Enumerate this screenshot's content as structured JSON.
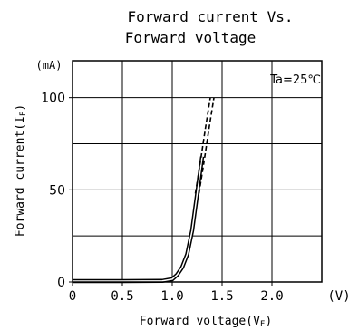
{
  "chart_data": {
    "type": "line",
    "title": [
      "Forward current Vs.",
      "Forward voltage"
    ],
    "xlabel": "Forward voltage(VF)",
    "ylabel": "Forward current(IF)",
    "x_unit": "(V)",
    "y_unit": "(mA)",
    "annotation": "Ta=25℃",
    "xlim": [
      0,
      2.5
    ],
    "ylim": [
      0,
      120
    ],
    "x_ticks": [
      {
        "value": 0,
        "label": "0"
      },
      {
        "value": 0.5,
        "label": "0.5"
      },
      {
        "value": 1.0,
        "label": "1.0"
      },
      {
        "value": 1.5,
        "label": "1.5"
      },
      {
        "value": 2.0,
        "label": "2.0"
      }
    ],
    "y_ticks": [
      {
        "value": 0,
        "label": "0"
      },
      {
        "value": 50,
        "label": "50"
      },
      {
        "value": 100,
        "label": "100"
      }
    ],
    "grid": true,
    "grid_x": [
      0.5,
      1.0,
      1.5,
      2.0
    ],
    "grid_y": [
      25,
      50,
      75,
      100
    ],
    "series": [
      {
        "style": "solid",
        "x": [
          0,
          0.5,
          0.9,
          1.0,
          1.05,
          1.1,
          1.15,
          1.2,
          1.25,
          1.3
        ],
        "y": [
          0.5,
          0.5,
          0.6,
          1.5,
          4,
          8,
          15,
          28,
          48,
          68
        ]
      },
      {
        "style": "dashed",
        "x": [
          1.25,
          1.3,
          1.35,
          1.4
        ],
        "y": [
          48,
          65,
          83,
          100
        ]
      }
    ],
    "colors": {
      "line": "#000000",
      "grid": "#000000",
      "background": "#ffffff"
    }
  }
}
